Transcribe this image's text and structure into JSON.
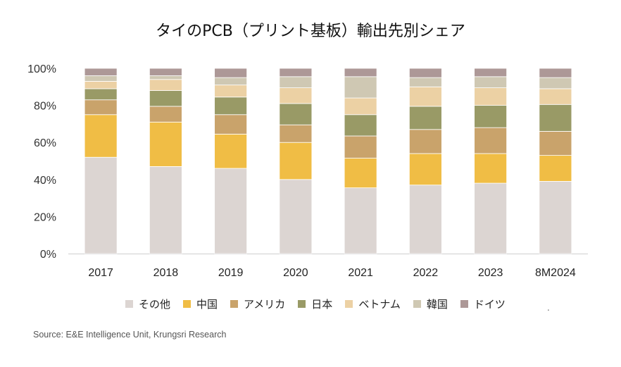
{
  "chart_data": {
    "type": "bar",
    "stacked": true,
    "title": "タイのPCB（プリント基板）輸出先別シェア",
    "xlabel": "",
    "ylabel": "",
    "ylim": [
      0,
      100
    ],
    "yticks": [
      "0%",
      "20%",
      "40%",
      "60%",
      "80%",
      "100%"
    ],
    "categories": [
      "2017",
      "2018",
      "2019",
      "2020",
      "2021",
      "2022",
      "2023",
      "8M2024"
    ],
    "grid": false,
    "legend_position": "bottom",
    "series": [
      {
        "name": "その他",
        "color": "#dcd5d2",
        "values": [
          52,
          47,
          46,
          40,
          35.5,
          37,
          38,
          39
        ]
      },
      {
        "name": "中国",
        "color": "#f0bd45",
        "values": [
          23,
          24,
          18.5,
          20,
          16,
          17,
          16,
          14
        ]
      },
      {
        "name": "アメリカ",
        "color": "#c9a36b",
        "values": [
          8,
          8.5,
          10.5,
          9.5,
          12,
          13,
          14,
          13
        ]
      },
      {
        "name": "日本",
        "color": "#999a66",
        "values": [
          6,
          8.5,
          9.5,
          11.5,
          11.5,
          12.5,
          12,
          14.5
        ]
      },
      {
        "name": "ベトナム",
        "color": "#ecd1a4",
        "values": [
          4,
          6,
          6.5,
          8.5,
          9,
          10.5,
          9.5,
          8.5
        ]
      },
      {
        "name": "韓国",
        "color": "#cfc8b3",
        "values": [
          3,
          2,
          4,
          6,
          11.5,
          5,
          6,
          6
        ]
      },
      {
        "name": "ドイツ",
        "color": "#ad9897",
        "values": [
          4,
          4,
          5,
          4.5,
          4.5,
          5,
          4.5,
          5
        ]
      }
    ]
  },
  "legend_extra": ".",
  "source": "Source: E&E  Intelligence Unit, Krungsri Research"
}
